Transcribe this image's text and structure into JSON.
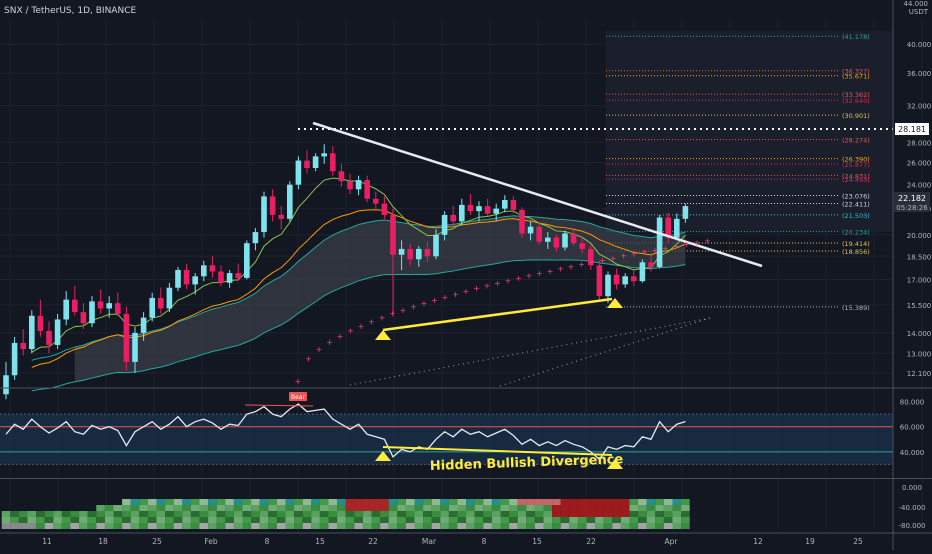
{
  "header": {
    "symbol_title": "SNX / TetherUS, 1D, BINANCE",
    "currency_label": "USDT",
    "top_price": "44.000"
  },
  "price_axis": {
    "ticks": [
      "40.000",
      "36.000",
      "32.000",
      "28.000",
      "26.000",
      "24.000",
      "22.000",
      "20.000",
      "18.500",
      "17.000",
      "15.500",
      "14.000",
      "13.000",
      "12.100"
    ],
    "last_price": "22.182",
    "countdown": "05:28:26",
    "line_price": "28.181"
  },
  "fib_levels": [
    {
      "label": "(41.178)",
      "price": 41.178,
      "color": "#26a69a"
    },
    {
      "label": "(36.327)",
      "price": 36.327,
      "color": "#ef5350"
    },
    {
      "label": "(35.671)",
      "price": 35.671,
      "color": "#f7a600"
    },
    {
      "label": "(33.362)",
      "price": 33.362,
      "color": "#ef5350"
    },
    {
      "label": "(32.640)",
      "price": 32.64,
      "color": "#e91e63"
    },
    {
      "label": "(30.901)",
      "price": 30.901,
      "color": "#e0c35a"
    },
    {
      "label": "(28.274)",
      "price": 28.274,
      "color": "#ef5350"
    },
    {
      "label": "(26.390)",
      "price": 26.39,
      "color": "#f7a600"
    },
    {
      "label": "(25.877)",
      "price": 25.877,
      "color": "#e91e63"
    },
    {
      "label": "(24.831)",
      "price": 24.831,
      "color": "#ef5350"
    },
    {
      "label": "(24.493)",
      "price": 24.493,
      "color": "#e91e63"
    },
    {
      "label": "(23.076)",
      "price": 23.076,
      "color": "#d1d4dc"
    },
    {
      "label": "(22.411)",
      "price": 22.411,
      "color": "#d1d4dc"
    },
    {
      "label": "(21.503)",
      "price": 21.503,
      "color": "#26c6da"
    },
    {
      "label": "(20.234)",
      "price": 20.234,
      "color": "#26a69a"
    },
    {
      "label": "(19.414)",
      "price": 19.414,
      "color": "#e0c35a"
    },
    {
      "label": "(18.856)",
      "price": 18.856,
      "color": "#e0c35a"
    },
    {
      "label": "(15.389)",
      "price": 15.389,
      "color": "#b2b5be"
    }
  ],
  "rsi_axis": {
    "ticks": [
      "80.000",
      "60.000",
      "40.000"
    ]
  },
  "hist_axis": {
    "ticks": [
      "0.000",
      "-40.000",
      "-80.000"
    ]
  },
  "time_axis": {
    "ticks": [
      "11",
      "18",
      "25",
      "Feb",
      "8",
      "15",
      "22",
      "Mar",
      "8",
      "15",
      "22",
      "Apr",
      "12",
      "19",
      "25"
    ]
  },
  "annotations": {
    "divergence_text": "Hidden Bullish Divergence",
    "bear_tag": "Bear"
  },
  "chart_data": {
    "type": "candlestick",
    "y_scale": "log",
    "ylim": [
      11.5,
      44.0
    ],
    "candles": [
      [
        11.2,
        12.6,
        11.0,
        12.0
      ],
      [
        12.0,
        13.8,
        11.8,
        13.5
      ],
      [
        13.5,
        14.2,
        12.9,
        13.2
      ],
      [
        13.2,
        15.2,
        13.0,
        14.9
      ],
      [
        14.9,
        15.8,
        13.8,
        14.1
      ],
      [
        14.1,
        14.6,
        13.0,
        13.4
      ],
      [
        13.4,
        15.0,
        13.2,
        14.7
      ],
      [
        14.7,
        16.3,
        14.4,
        15.8
      ],
      [
        15.8,
        16.6,
        14.9,
        15.1
      ],
      [
        15.1,
        15.6,
        14.2,
        14.5
      ],
      [
        14.5,
        16.0,
        14.3,
        15.7
      ],
      [
        15.7,
        16.4,
        15.0,
        15.3
      ],
      [
        15.3,
        16.0,
        14.8,
        15.6
      ],
      [
        15.6,
        16.2,
        14.9,
        15.0
      ],
      [
        15.0,
        15.4,
        12.2,
        12.6
      ],
      [
        12.6,
        14.3,
        12.1,
        14.0
      ],
      [
        14.0,
        15.1,
        13.6,
        14.8
      ],
      [
        14.8,
        16.2,
        14.6,
        15.9
      ],
      [
        15.9,
        16.5,
        15.0,
        15.3
      ],
      [
        15.3,
        16.8,
        15.1,
        16.5
      ],
      [
        16.5,
        17.8,
        16.3,
        17.6
      ],
      [
        17.6,
        18.0,
        16.4,
        16.7
      ],
      [
        16.7,
        17.4,
        16.1,
        17.2
      ],
      [
        17.2,
        18.2,
        16.9,
        17.9
      ],
      [
        17.9,
        18.5,
        17.1,
        17.5
      ],
      [
        17.5,
        17.9,
        16.6,
        16.8
      ],
      [
        16.8,
        17.6,
        16.5,
        17.4
      ],
      [
        17.4,
        18.0,
        16.9,
        17.1
      ],
      [
        17.1,
        19.6,
        17.0,
        19.4
      ],
      [
        19.4,
        20.5,
        18.9,
        20.2
      ],
      [
        20.2,
        23.4,
        19.8,
        23.0
      ],
      [
        23.0,
        23.6,
        21.0,
        21.5
      ],
      [
        21.5,
        22.2,
        20.4,
        21.2
      ],
      [
        21.2,
        24.3,
        21.0,
        24.0
      ],
      [
        24.0,
        26.6,
        23.6,
        26.2
      ],
      [
        26.2,
        27.2,
        25.0,
        25.5
      ],
      [
        25.5,
        26.9,
        25.2,
        26.6
      ],
      [
        26.6,
        27.8,
        25.9,
        26.9
      ],
      [
        26.9,
        27.6,
        24.8,
        25.2
      ],
      [
        25.2,
        25.9,
        23.8,
        24.3
      ],
      [
        24.3,
        25.0,
        23.2,
        23.6
      ],
      [
        23.6,
        24.8,
        23.1,
        24.4
      ],
      [
        24.4,
        24.8,
        22.5,
        22.8
      ],
      [
        22.8,
        23.4,
        21.8,
        22.4
      ],
      [
        22.4,
        23.0,
        21.2,
        21.5
      ],
      [
        21.5,
        22.0,
        15.0,
        18.6
      ],
      [
        18.6,
        19.6,
        17.6,
        19.0
      ],
      [
        19.0,
        19.4,
        17.9,
        18.3
      ],
      [
        18.3,
        19.2,
        17.8,
        19.0
      ],
      [
        19.0,
        19.5,
        18.1,
        18.5
      ],
      [
        18.5,
        20.4,
        18.3,
        20.0
      ],
      [
        20.0,
        21.8,
        19.6,
        21.5
      ],
      [
        21.5,
        22.2,
        20.6,
        21.0
      ],
      [
        21.0,
        22.8,
        20.7,
        22.3
      ],
      [
        22.3,
        23.2,
        21.5,
        21.8
      ],
      [
        21.8,
        22.6,
        21.0,
        22.2
      ],
      [
        22.2,
        22.8,
        21.4,
        21.6
      ],
      [
        21.6,
        22.4,
        21.0,
        22.0
      ],
      [
        22.0,
        23.1,
        21.7,
        22.7
      ],
      [
        22.7,
        23.0,
        21.6,
        21.9
      ],
      [
        21.9,
        22.1,
        19.8,
        20.1
      ],
      [
        20.1,
        21.0,
        19.6,
        20.6
      ],
      [
        20.6,
        20.9,
        19.3,
        19.5
      ],
      [
        19.5,
        20.2,
        19.0,
        19.8
      ],
      [
        19.8,
        20.0,
        18.8,
        19.1
      ],
      [
        19.1,
        20.3,
        18.9,
        20.1
      ],
      [
        20.1,
        20.4,
        19.2,
        19.4
      ],
      [
        19.4,
        19.8,
        18.7,
        19.0
      ],
      [
        19.0,
        19.3,
        17.6,
        17.9
      ],
      [
        17.9,
        18.2,
        15.7,
        16.0
      ],
      [
        16.0,
        17.5,
        15.6,
        17.3
      ],
      [
        17.3,
        17.7,
        16.4,
        16.7
      ],
      [
        16.7,
        17.4,
        16.5,
        17.2
      ],
      [
        17.2,
        17.6,
        16.6,
        16.9
      ],
      [
        16.9,
        18.3,
        16.8,
        18.1
      ],
      [
        18.1,
        18.5,
        17.5,
        17.8
      ],
      [
        17.8,
        21.5,
        17.7,
        21.3
      ],
      [
        21.3,
        21.7,
        19.4,
        19.8
      ],
      [
        19.8,
        21.6,
        19.6,
        21.2
      ],
      [
        21.2,
        22.4,
        20.9,
        22.2
      ]
    ],
    "lines": {
      "trendline": {
        "from": [
          38,
          28.6
        ],
        "to": [
          105,
          17.5
        ],
        "color": "#e6eaf0"
      },
      "horizontal_resistance": {
        "price": 28.181,
        "color": "#ffffff"
      },
      "divergence_price": {
        "from": [
          50,
          14.5
        ],
        "to": [
          80,
          15.5
        ],
        "color": "#ffeb3b"
      }
    },
    "rsi": [
      54,
      62,
      58,
      66,
      60,
      55,
      59,
      64,
      56,
      54,
      61,
      58,
      60,
      57,
      45,
      56,
      60,
      64,
      58,
      62,
      68,
      60,
      64,
      66,
      63,
      58,
      62,
      61,
      70,
      72,
      76,
      70,
      68,
      74,
      78,
      72,
      73,
      74,
      66,
      62,
      58,
      62,
      54,
      52,
      50,
      36,
      42,
      40,
      44,
      42,
      50,
      56,
      52,
      58,
      54,
      56,
      52,
      55,
      58,
      53,
      46,
      50,
      45,
      48,
      45,
      49,
      46,
      44,
      40,
      34,
      44,
      42,
      45,
      44,
      52,
      50,
      64,
      56,
      62,
      64
    ],
    "rsi_levels": [
      70,
      60,
      40,
      30
    ],
    "histogram": {
      "ylim": [
        -95,
        5
      ]
    }
  },
  "colors": {
    "background": "#131722",
    "bull": "#7fe3ee",
    "bear": "#e91e63",
    "rsi_line": "#e6eaf0",
    "level_red": "#ef5350",
    "level_green": "#26a69a",
    "rsi_band": "#1b3b5a",
    "highlight": "#ffeb3b"
  }
}
